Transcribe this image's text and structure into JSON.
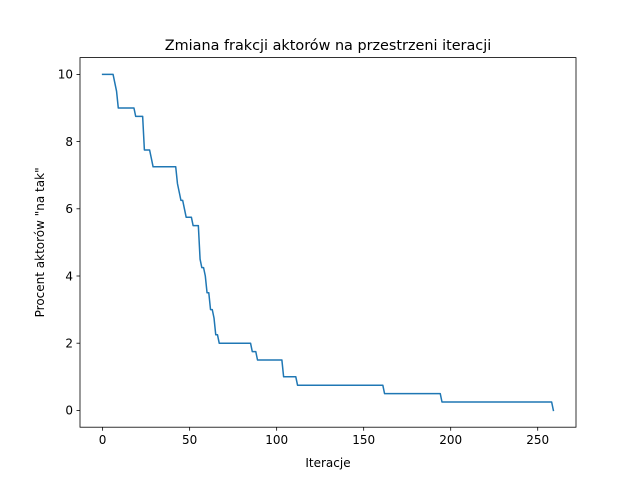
{
  "chart_data": {
    "type": "line",
    "title": "Zmiana frakcji aktorów na przestrzeni iteracji",
    "xlabel": "Iteracje",
    "ylabel": "Procent aktorów \"na tak\"",
    "xlim": [
      -13,
      272
    ],
    "ylim": [
      -0.5,
      10.5
    ],
    "xticks": [
      0,
      50,
      100,
      150,
      200,
      250
    ],
    "yticks": [
      0,
      2,
      4,
      6,
      8,
      10
    ],
    "xtick_labels": [
      "0",
      "50",
      "100",
      "150",
      "200",
      "250"
    ],
    "ytick_labels": [
      "0",
      "2",
      "4",
      "6",
      "8",
      "10"
    ],
    "grid": false,
    "series": [
      {
        "color": "#1f77b4",
        "x": [
          0,
          6,
          7,
          8,
          9,
          18,
          19,
          23,
          24,
          27,
          28,
          29,
          30,
          42,
          43,
          44,
          45,
          46,
          47,
          48,
          49,
          50,
          51,
          52,
          53,
          54,
          55,
          56,
          57,
          58,
          59,
          60,
          61,
          62,
          63,
          64,
          65,
          66,
          67,
          68,
          85,
          86,
          88,
          89,
          103,
          104,
          111,
          112,
          161,
          162,
          194,
          195,
          258,
          259
        ],
        "y": [
          10,
          10,
          9.75,
          9.5,
          9,
          9,
          8.75,
          8.75,
          7.75,
          7.75,
          7.5,
          7.25,
          7.25,
          7.25,
          6.75,
          6.5,
          6.25,
          6.25,
          6,
          5.75,
          5.75,
          5.75,
          5.75,
          5.5,
          5.5,
          5.5,
          5.5,
          4.5,
          4.25,
          4.25,
          4,
          3.5,
          3.5,
          3,
          3,
          2.75,
          2.25,
          2.25,
          2,
          2,
          2,
          1.75,
          1.75,
          1.5,
          1.5,
          1,
          1,
          0.75,
          0.75,
          0.5,
          0.5,
          0.25,
          0.25,
          0
        ]
      }
    ]
  }
}
